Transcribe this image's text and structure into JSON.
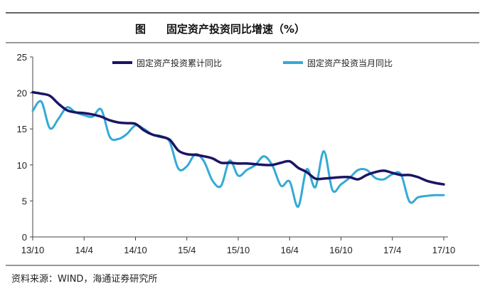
{
  "figure_label": "图",
  "source_text": "资料来源：WIND，海通证券研究所",
  "chart_data": {
    "type": "line",
    "title": "固定资产投资同比增速（%）",
    "xlabel": "",
    "ylabel": "",
    "ylim": [
      0,
      25
    ],
    "yticks": [
      0,
      5,
      10,
      15,
      20,
      25
    ],
    "xlim": [
      0,
      48
    ],
    "xticks": [
      {
        "label": "13/10",
        "x": 0
      },
      {
        "label": "14/4",
        "x": 6
      },
      {
        "label": "14/10",
        "x": 12
      },
      {
        "label": "15/4",
        "x": 18
      },
      {
        "label": "15/10",
        "x": 24
      },
      {
        "label": "16/4",
        "x": 30
      },
      {
        "label": "16/10",
        "x": 36
      },
      {
        "label": "17/4",
        "x": 42
      },
      {
        "label": "17/10",
        "x": 48
      }
    ],
    "grid": false,
    "legend_position": "top",
    "colors": {
      "cumulative": "#1b1464",
      "monthly": "#33aad6"
    },
    "series": [
      {
        "name": "固定资产投资累计同比",
        "key": "cumulative",
        "x": [
          0,
          1,
          2,
          3,
          4,
          5,
          6,
          7,
          8,
          9,
          10,
          11,
          12,
          13,
          14,
          15,
          16,
          17,
          18,
          19,
          20,
          21,
          22,
          23,
          24,
          25,
          26,
          27,
          28,
          29,
          30,
          31,
          32,
          33,
          34,
          35,
          36,
          37,
          38,
          39,
          40,
          41,
          42,
          43,
          44,
          45,
          46,
          47,
          48
        ],
        "values": [
          20.1,
          19.9,
          19.6,
          18.5,
          17.6,
          17.3,
          17.2,
          17.0,
          16.7,
          16.2,
          15.9,
          15.8,
          15.7,
          14.8,
          14.2,
          13.9,
          13.5,
          12.0,
          11.5,
          11.4,
          11.2,
          10.9,
          10.3,
          10.3,
          10.2,
          10.2,
          10.1,
          10.0,
          10.0,
          10.3,
          10.5,
          9.6,
          9.0,
          8.1,
          8.1,
          8.2,
          8.3,
          8.3,
          8.0,
          8.6,
          9.0,
          9.2,
          8.9,
          8.6,
          8.6,
          8.3,
          7.8,
          7.5,
          7.3
        ]
      },
      {
        "name": "固定资产投资当月同比",
        "key": "monthly",
        "x": [
          0,
          1,
          2,
          3,
          4,
          5,
          6,
          7,
          8,
          9,
          10,
          11,
          12,
          13,
          14,
          15,
          16,
          17,
          18,
          19,
          20,
          21,
          22,
          23,
          24,
          25,
          26,
          27,
          28,
          29,
          30,
          31,
          32,
          33,
          34,
          35,
          36,
          37,
          38,
          39,
          40,
          41,
          42,
          43,
          44,
          45,
          46,
          47,
          48
        ],
        "values": [
          17.5,
          18.8,
          15.1,
          16.4,
          18.0,
          17.3,
          16.9,
          16.7,
          17.7,
          13.9,
          13.6,
          14.3,
          15.5,
          15.0,
          14.2,
          14.0,
          13.2,
          9.5,
          9.8,
          11.5,
          10.5,
          7.8,
          7.1,
          10.6,
          8.5,
          9.3,
          10.0,
          11.2,
          9.9,
          7.1,
          7.7,
          4.2,
          9.4,
          6.9,
          11.9,
          6.5,
          7.3,
          8.2,
          9.3,
          9.3,
          8.2,
          8.0,
          8.7,
          8.7,
          4.9,
          5.5,
          5.7,
          5.8,
          5.8
        ]
      }
    ]
  }
}
